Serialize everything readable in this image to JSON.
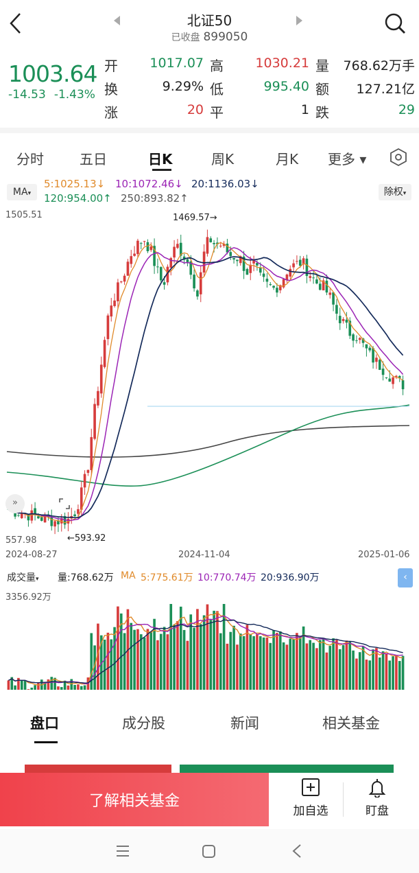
{
  "header": {
    "title": "北证50",
    "status": "已收盘",
    "code": "899050"
  },
  "quote": {
    "price": "1003.64",
    "change": "-14.53",
    "change_pct": "-1.43%",
    "rows": [
      [
        {
          "label": "开",
          "value": "1017.07",
          "color": "green"
        },
        {
          "label": "高",
          "value": "1030.21",
          "color": "red"
        },
        {
          "label": "量",
          "value": "768.62万手",
          "color": "dark"
        }
      ],
      [
        {
          "label": "换",
          "value": "9.29%",
          "color": "dark"
        },
        {
          "label": "低",
          "value": "995.40",
          "color": "green"
        },
        {
          "label": "额",
          "value": "127.21亿",
          "color": "dark"
        }
      ],
      [
        {
          "label": "涨",
          "value": "20",
          "color": "red"
        },
        {
          "label": "平",
          "value": "1",
          "color": "dark"
        },
        {
          "label": "跌",
          "value": "29",
          "color": "green"
        }
      ]
    ]
  },
  "period_tabs": [
    "分时",
    "五日",
    "日K",
    "周K",
    "月K",
    "更多"
  ],
  "active_period": "日K",
  "ma_header": {
    "btn": "MA",
    "ma5": "5:1025.13↓",
    "ma10": "10:1072.46↓",
    "ma20": "20:1136.03↓",
    "ma120": "120:954.00↑",
    "ma250": "250:893.82↑",
    "adjust": "除权"
  },
  "kline": {
    "ymax": "1505.51",
    "ymin": "557.98",
    "high_mark": "1469.57→",
    "low_mark": "←593.92",
    "dates": [
      "2024-08-27",
      "2024-11-04",
      "2025-01-06"
    ]
  },
  "volume": {
    "label": "成交量",
    "vol": "量:768.62万",
    "ma_label": "MA",
    "ma5": "5:775.61万",
    "ma10": "10:770.74万",
    "ma20": "20:936.90万",
    "ymax": "3356.92万"
  },
  "bottom_tabs": [
    "盘口",
    "成分股",
    "新闻",
    "相关基金"
  ],
  "active_bottom": "盘口",
  "actions": {
    "fund_btn": "了解相关基金",
    "watch": "加自选",
    "alert": "盯盘"
  },
  "colors": {
    "up": "#d63c3c",
    "down": "#1b8f57",
    "ma5": "#e08a2a",
    "ma10": "#9b24b5",
    "ma20": "#142a5a",
    "ma120": "#1b8f57",
    "ma250": "#444444"
  }
}
